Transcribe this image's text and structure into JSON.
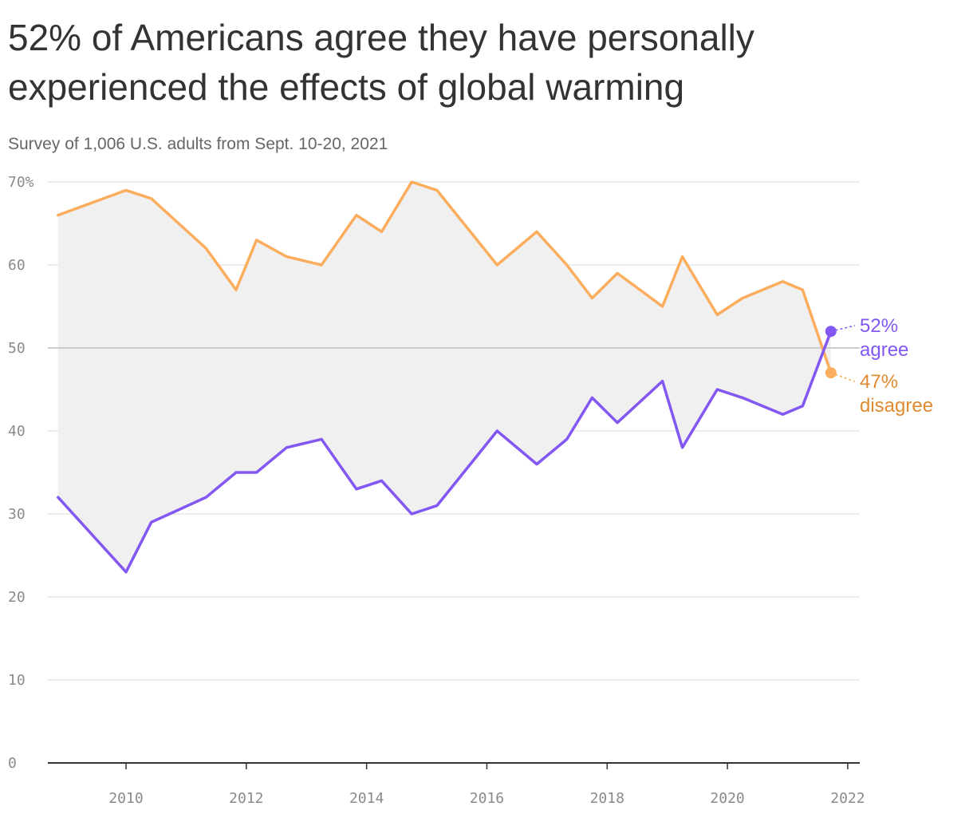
{
  "title": "52% of Americans agree they have personally experienced the effects of global warming",
  "subtitle": "Survey of 1,006 U.S. adults from Sept. 10-20, 2021",
  "colors": {
    "agree": "#8257f2",
    "disagree": "#fbad5e",
    "disagree_label": "#e08a2f",
    "band": "#f0f0f0",
    "grid": "#e0e0e0",
    "grid_50": "#cccccc",
    "axis": "#333333",
    "tick_text": "#8a8a8a"
  },
  "chart_data": {
    "type": "line",
    "ylim": [
      0,
      70
    ],
    "xlim": [
      2008.7,
      2022.2
    ],
    "y_ticks": [
      0,
      10,
      20,
      30,
      40,
      50,
      60,
      70
    ],
    "y_tick_labels": [
      "0",
      "10",
      "20",
      "30",
      "40",
      "50",
      "60",
      "70%"
    ],
    "x_ticks": [
      2010,
      2012,
      2014,
      2016,
      2018,
      2020,
      2022
    ],
    "x_tick_labels": [
      "2010",
      "2012",
      "2014",
      "2016",
      "2018",
      "2020",
      "2022"
    ],
    "grid": true,
    "shaded_between_series": true,
    "series": [
      {
        "key": "agree",
        "x": [
          2008.87,
          2010.0,
          2010.42,
          2011.33,
          2011.83,
          2012.17,
          2012.67,
          2013.25,
          2013.83,
          2014.25,
          2014.75,
          2015.17,
          2016.17,
          2016.83,
          2017.33,
          2017.75,
          2018.17,
          2018.92,
          2019.25,
          2019.83,
          2020.25,
          2020.92,
          2021.25,
          2021.72
        ],
        "values": [
          32,
          23,
          29,
          32,
          35,
          35,
          38,
          39,
          33,
          34,
          30,
          31,
          40,
          36,
          39,
          44,
          41,
          46,
          38,
          45,
          44,
          42,
          43,
          52
        ],
        "end_label": [
          "52%",
          "agree"
        ]
      },
      {
        "key": "disagree",
        "x": [
          2008.87,
          2010.0,
          2010.42,
          2011.33,
          2011.83,
          2012.17,
          2012.67,
          2013.25,
          2013.83,
          2014.25,
          2014.75,
          2015.17,
          2016.17,
          2016.83,
          2017.33,
          2017.75,
          2018.17,
          2018.92,
          2019.25,
          2019.83,
          2020.25,
          2020.92,
          2021.25,
          2021.72
        ],
        "values": [
          66,
          69,
          68,
          62,
          57,
          63,
          61,
          60,
          66,
          64,
          70,
          69,
          60,
          64,
          60,
          56,
          59,
          55,
          61,
          54,
          56,
          58,
          57,
          47
        ],
        "end_label": [
          "47%",
          "disagree"
        ]
      }
    ]
  }
}
